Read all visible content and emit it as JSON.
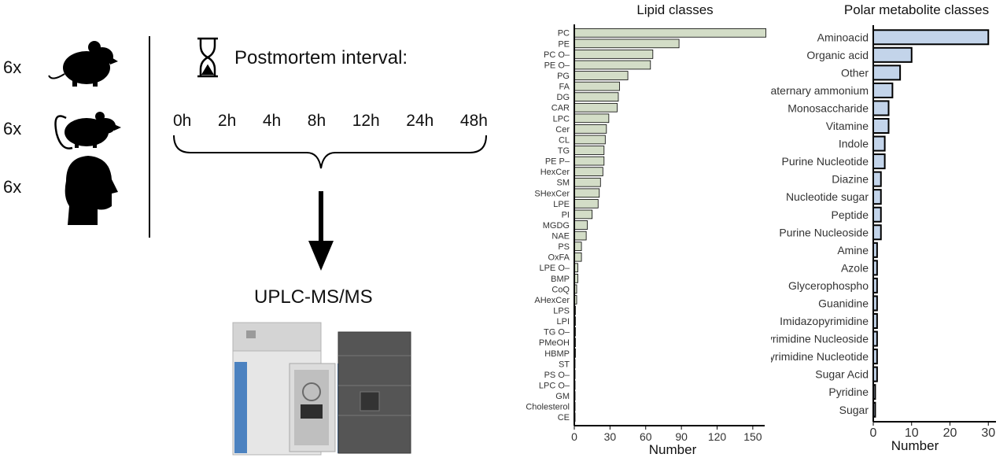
{
  "study": {
    "species_counts": [
      "6x",
      "6x",
      "6x"
    ],
    "species_icons": [
      "mouse-icon",
      "rat-icon",
      "human-head-icon"
    ],
    "pmi_title": "Postmortem interval:",
    "timepoints": [
      "0h",
      "2h",
      "4h",
      "8h",
      "12h",
      "24h",
      "48h"
    ],
    "method": "UPLC-MS/MS",
    "instrument_icon": "uplc-ms-instrument-icon"
  },
  "chart_data": [
    {
      "type": "bar",
      "orientation": "horizontal",
      "title": "Lipid classes",
      "xlabel": "Number",
      "ylabel": "",
      "xlim": [
        0,
        160
      ],
      "xticks": [
        0,
        30,
        60,
        90,
        120,
        150
      ],
      "color": "#d3ddc7",
      "categories": [
        "PC",
        "PE",
        "PC O–",
        "PE O–",
        "PG",
        "FA",
        "DG",
        "CAR",
        "LPC",
        "Cer",
        "CL",
        "TG",
        "PE P–",
        "HexCer",
        "SM",
        "SHexCer",
        "LPE",
        "PI",
        "MGDG",
        "NAE",
        "PS",
        "OxFA",
        "LPE O–",
        "BMP",
        "CoQ",
        "AHexCer",
        "LPS",
        "LPI",
        "TG O–",
        "PMeOH",
        "HBMP",
        "ST",
        "PS O–",
        "LPC O–",
        "GM",
        "Cholesterol",
        "CE"
      ],
      "values": [
        161,
        88,
        66,
        64,
        45,
        38,
        37,
        36,
        29,
        27,
        26,
        25,
        25,
        24,
        22,
        21,
        20,
        15,
        11,
        10,
        6,
        6,
        3,
        3,
        2,
        2,
        1,
        1,
        1,
        1,
        1,
        0.5,
        0.5,
        0.5,
        0.5,
        0.5,
        0.5
      ]
    },
    {
      "type": "bar",
      "orientation": "horizontal",
      "title": "Polar metabolite classes",
      "xlabel": "Number",
      "ylabel": "",
      "xlim": [
        0,
        32
      ],
      "xticks": [
        0,
        10,
        20,
        30
      ],
      "color": "#c3d4ea",
      "categories": [
        "Aminoacid",
        "Organic acid",
        "Other",
        "Quaternary ammonium",
        "Monosaccharide",
        "Vitamine",
        "Indole",
        "Purine Nucleotide",
        "Diazine",
        "Nucleotide sugar",
        "Peptide",
        "Purine Nucleoside",
        "Amine",
        "Azole",
        "Glycerophospho",
        "Guanidine",
        "Imidazopyrimidine",
        "Pyrimidine Nucleoside",
        "Pyrimidine Nucleotide",
        "Sugar Acid",
        "Pyridine",
        "Sugar"
      ],
      "values": [
        30,
        10,
        7,
        5,
        4,
        4,
        3,
        3,
        2,
        2,
        2,
        2,
        1,
        1,
        1,
        1,
        1,
        1,
        1,
        1,
        0.5,
        0.5
      ]
    }
  ]
}
